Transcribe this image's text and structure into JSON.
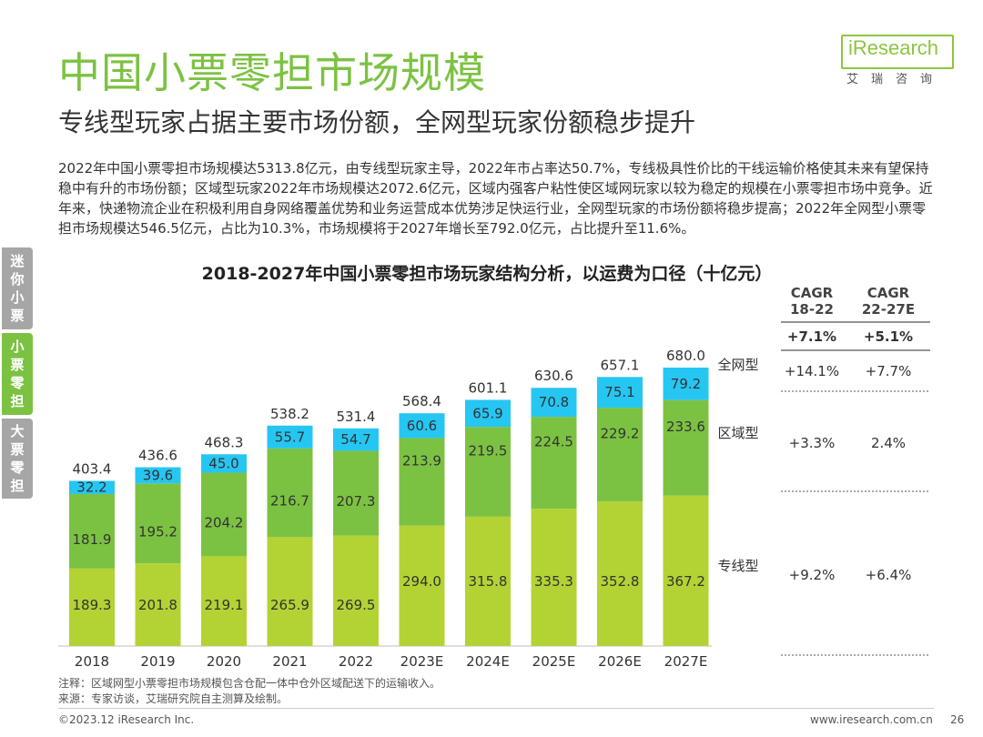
{
  "page": {
    "title": "中国小票零担市场规模",
    "subtitle": "专线型玩家占据主要市场份额，全网型玩家份额稳步提升",
    "description": "2022年中国小票零担市场规模达5313.8亿元，由专线型玩家主导，2022年市占率达50.7%，专线极具性价比的干线运输价格使其未来有望保持稳中有升的市场份额；区域型玩家2022年市场规模达2072.6亿元，区域内强客户粘性使区域网玩家以较为稳定的规模在小票零担市场中竞争。近年来，快递物流企业在积极利用自身网络覆盖优势和业务运营成本优势涉足快运行业，全网型玩家的市场份额将稳步提高；2022年全网型小票零担市场规模达546.5亿元，占比为10.3%，市场规模将于2027年增长至792.0亿元，占比提升至11.6%。",
    "logo_text": "iResearch",
    "logo_cn": "艾瑞咨询",
    "side_tabs": [
      {
        "label": "迷你小票",
        "color": "#a6a6a6"
      },
      {
        "label": "小票零担",
        "color": "#7cc242"
      },
      {
        "label": "大票零担",
        "color": "#a6a6a6"
      }
    ],
    "note": "注释：区域网型小票零担市场规模包含仓配一体中仓外区域配送下的运输收入。",
    "source": "来源：专家访谈，艾瑞研究院自主测算及绘制。",
    "copyright": "©2023.12 iResearch Inc.",
    "website": "www.iresearch.com.cn",
    "page_number": "26"
  },
  "chart_data": {
    "type": "bar",
    "stacked": true,
    "title": "2018-2027年中国小票零担市场玩家结构分析，以运费为口径（十亿元）",
    "categories": [
      "2018",
      "2019",
      "2020",
      "2021",
      "2022",
      "2023E",
      "2024E",
      "2025E",
      "2026E",
      "2027E"
    ],
    "series": [
      {
        "name": "专线型",
        "color": "#b3d334",
        "values": [
          189.3,
          201.8,
          219.1,
          265.9,
          269.5,
          294.0,
          315.8,
          335.3,
          352.8,
          367.2
        ]
      },
      {
        "name": "区域型",
        "color": "#7cc242",
        "values": [
          181.9,
          195.2,
          204.2,
          216.7,
          207.3,
          213.9,
          219.5,
          224.5,
          229.2,
          233.6
        ]
      },
      {
        "name": "全网型",
        "color": "#26c6f2",
        "values": [
          32.2,
          39.6,
          45.0,
          55.7,
          54.7,
          60.6,
          65.9,
          70.8,
          75.1,
          79.2
        ]
      }
    ],
    "totals": [
      403.4,
      436.6,
      468.3,
      538.2,
      531.4,
      568.4,
      601.1,
      630.6,
      657.1,
      680.0
    ],
    "legend_placement": "right",
    "cagr": {
      "headers": [
        "CAGR\n18-22",
        "CAGR\n22-27E"
      ],
      "total": [
        "+7.1%",
        "+5.1%"
      ],
      "rows": [
        {
          "series": "全网型",
          "values": [
            "+14.1%",
            "+7.7%"
          ]
        },
        {
          "series": "区域型",
          "values": [
            "+3.3%",
            "2.4%"
          ]
        },
        {
          "series": "专线型",
          "values": [
            "+9.2%",
            "+6.4%"
          ]
        }
      ]
    }
  }
}
